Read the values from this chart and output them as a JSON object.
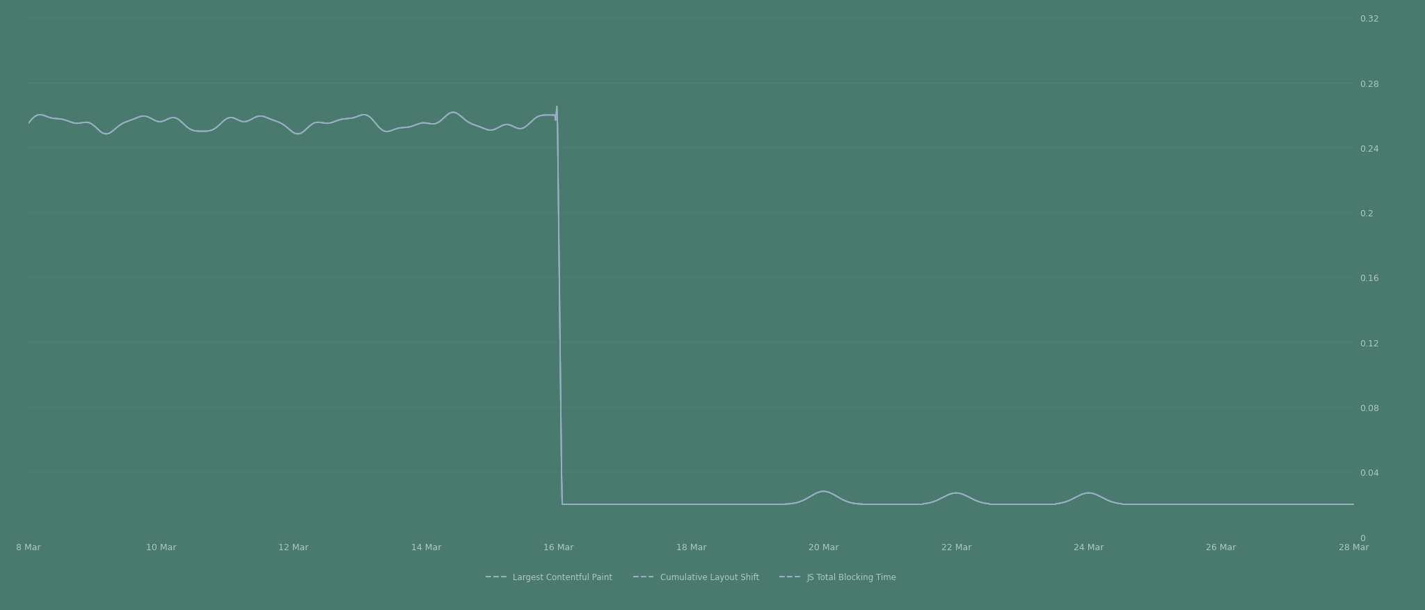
{
  "background_color": "#4a7a6d",
  "plot_bg_color": "#4a7a6d",
  "grid_color": "#7aaa98",
  "line_color_cls": "#9aafc4",
  "ylim": [
    0,
    0.32
  ],
  "yticks": [
    0,
    0.04,
    0.08,
    0.12,
    0.16,
    0.2,
    0.24,
    0.28,
    0.32
  ],
  "xtick_labels": [
    "8 Mar",
    "10 Mar",
    "12 Mar",
    "14 Mar",
    "16 Mar",
    "18 Mar",
    "20 Mar",
    "22 Mar",
    "24 Mar",
    "26 Mar",
    "28 Mar"
  ],
  "legend_labels": [
    "Largest Contentful Paint",
    "Cumulative Layout Shift",
    "JS Total Blocking Time"
  ],
  "legend_colors": [
    "#9aafc4",
    "#9aafc4",
    "#9aafc4"
  ],
  "tick_color": "#b0c8c0",
  "legend_fontsize": 8.5,
  "tick_fontsize": 9,
  "line_width": 1.3
}
